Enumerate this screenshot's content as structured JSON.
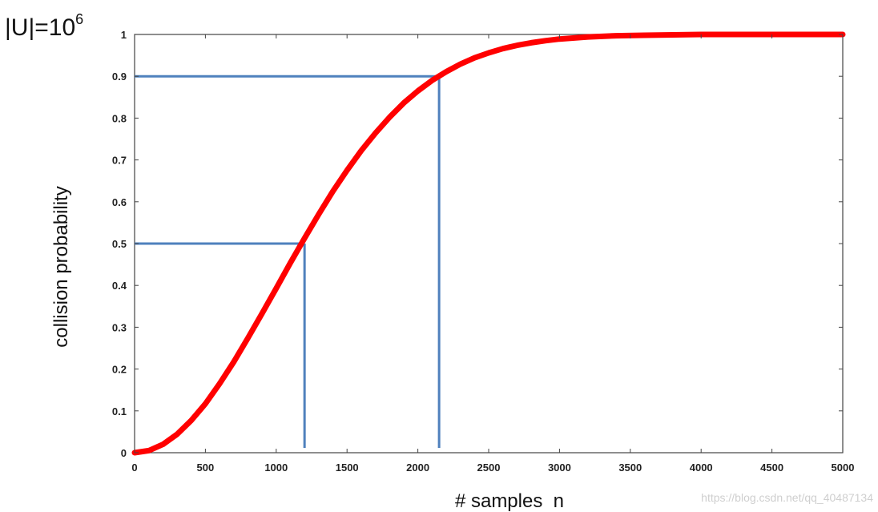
{
  "set_size_label": {
    "base": "|U|=10",
    "exponent": "6"
  },
  "watermark": "https://blog.csdn.net/qq_40487134",
  "chart_data": {
    "type": "line",
    "title": "",
    "xlabel": "# samples  n",
    "ylabel": "collision probability",
    "xlim": [
      0,
      5000
    ],
    "ylim": [
      0,
      1
    ],
    "xticks": [
      0,
      500,
      1000,
      1500,
      2000,
      2500,
      3000,
      3500,
      4000,
      4500,
      5000
    ],
    "yticks": [
      0,
      0.1,
      0.2,
      0.3,
      0.4,
      0.5,
      0.6,
      0.7,
      0.8,
      0.9,
      1
    ],
    "ytick_labels": [
      "0",
      "0.1",
      "0.2",
      "0.3",
      "0.4",
      "0.5",
      "0.6",
      "0.7",
      "0.8",
      "0.9",
      "1"
    ],
    "grid": false,
    "series": [
      {
        "color": "#ff0000",
        "x": [
          0,
          100,
          200,
          300,
          400,
          500,
          600,
          700,
          800,
          900,
          1000,
          1100,
          1200,
          1300,
          1400,
          1500,
          1600,
          1700,
          1800,
          1900,
          2000,
          2100,
          2200,
          2300,
          2400,
          2500,
          2600,
          2700,
          2800,
          2900,
          3000,
          3200,
          3400,
          3600,
          3800,
          4000,
          4500,
          5000
        ],
        "y": [
          0,
          0.005,
          0.02,
          0.044,
          0.077,
          0.117,
          0.165,
          0.217,
          0.274,
          0.333,
          0.393,
          0.454,
          0.513,
          0.57,
          0.625,
          0.675,
          0.722,
          0.764,
          0.802,
          0.836,
          0.865,
          0.89,
          0.911,
          0.929,
          0.944,
          0.956,
          0.966,
          0.974,
          0.98,
          0.985,
          0.989,
          0.994,
          0.997,
          0.998,
          0.999,
          1.0,
          1.0,
          1.0
        ]
      }
    ],
    "reference_lines": [
      {
        "color": "#4f81bd",
        "x": 1200,
        "y": 0.5
      },
      {
        "color": "#4f81bd",
        "x": 2150,
        "y": 0.9
      }
    ]
  }
}
